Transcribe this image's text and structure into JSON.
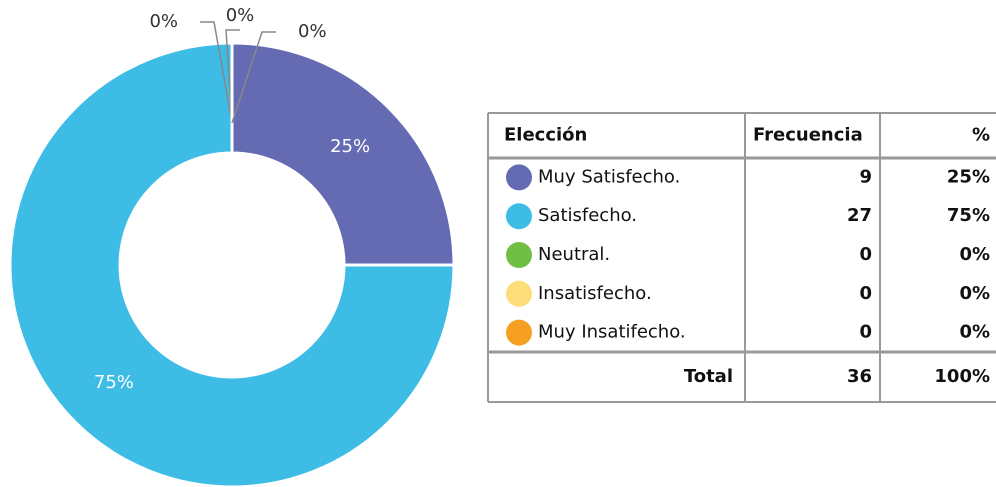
{
  "chart_data": {
    "type": "pie",
    "donut": true,
    "categories": [
      "Muy Satisfecho.",
      "Satisfecho.",
      "Neutral.",
      "Insatisfecho.",
      "Muy Insatifecho."
    ],
    "values": [
      25,
      75,
      0,
      0,
      0
    ],
    "value_labels": [
      "25%",
      "75%",
      "0%",
      "0%",
      "0%"
    ],
    "colors": [
      "#646bb3",
      "#3dbce6",
      "#6fbf45",
      "#fddd7a",
      "#f5a023"
    ]
  },
  "table": {
    "headers": [
      "Elección",
      "Frecuencia",
      "%"
    ],
    "rows": [
      [
        9,
        "25%"
      ],
      [
        27,
        "75%"
      ],
      [
        0,
        "0%"
      ],
      [
        0,
        "0%"
      ],
      [
        0,
        "0%"
      ]
    ],
    "total": [
      "Total",
      36,
      "100%"
    ]
  }
}
